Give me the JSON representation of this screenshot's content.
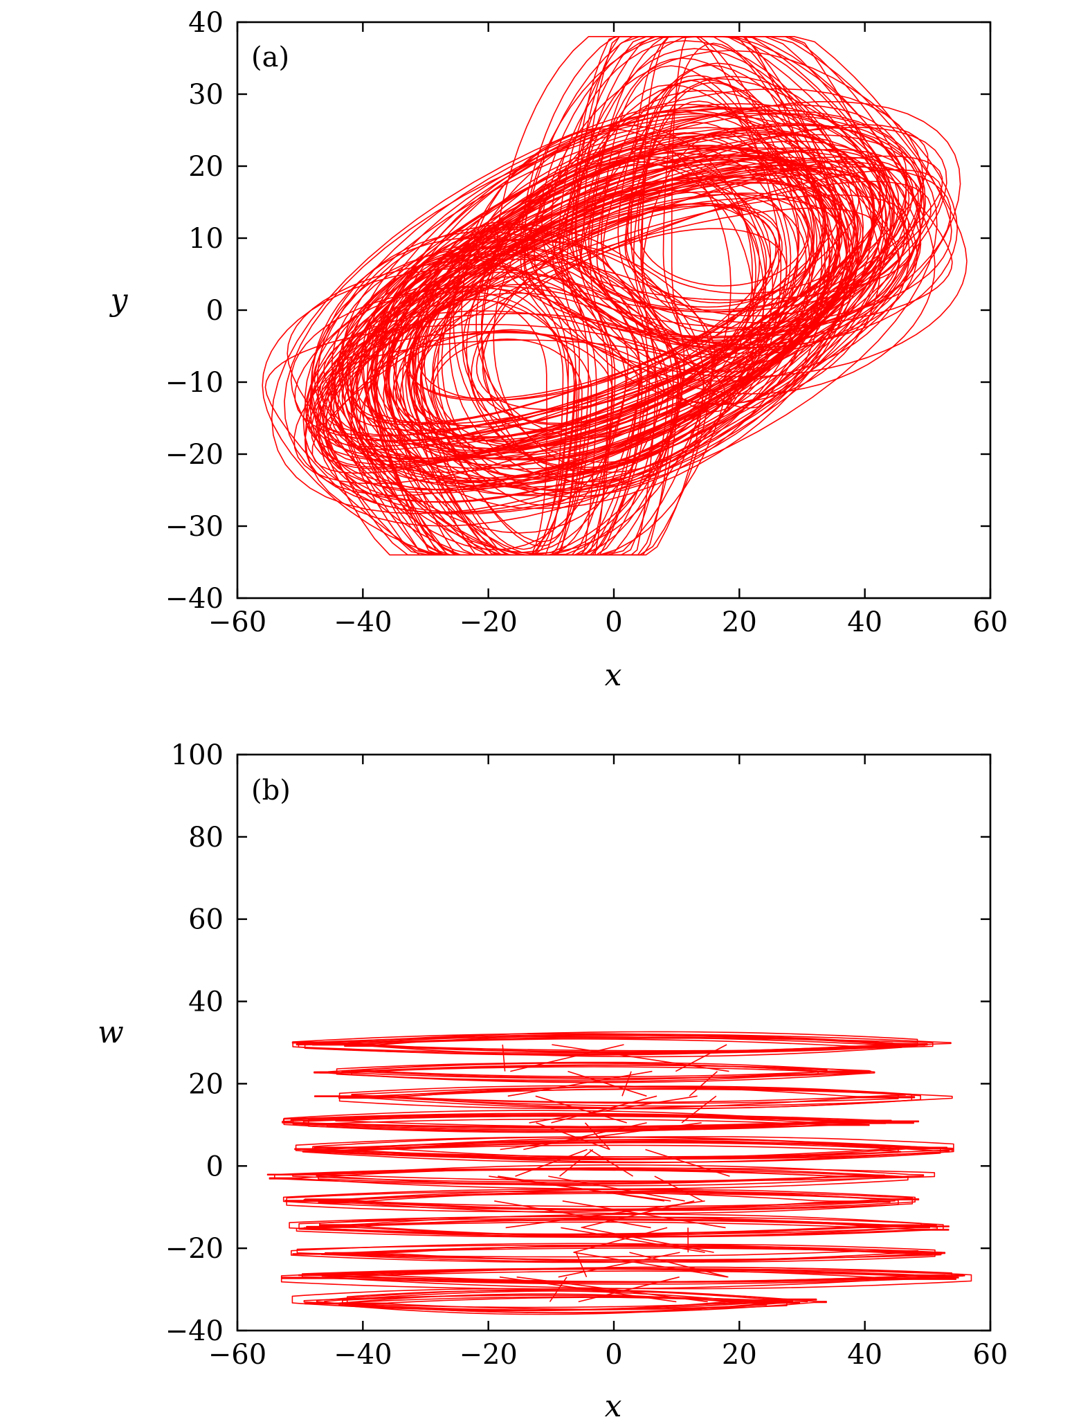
{
  "colors": {
    "trace": "#ff0000",
    "axes": "#000000",
    "background": "#ffffff"
  },
  "chart_data": [
    {
      "type": "line",
      "panel_label": "(a)",
      "xlabel": "x",
      "ylabel": "y",
      "xlim": [
        -60,
        60
      ],
      "ylim": [
        -40,
        40
      ],
      "xticks": [
        -60,
        -40,
        -20,
        0,
        20,
        40,
        60
      ],
      "yticks": [
        -40,
        -30,
        -20,
        -10,
        0,
        10,
        20,
        30,
        40
      ],
      "xtick_labels": [
        "−60",
        "−40",
        "−20",
        "0",
        "20",
        "40",
        "60"
      ],
      "ytick_labels": [
        "−40",
        "−30",
        "−20",
        "−10",
        "0",
        "10",
        "20",
        "30",
        "40"
      ],
      "grid": false,
      "description_of_series": "chaotic attractor phase portrait",
      "extent": {
        "x": [
          -57,
          57
        ],
        "y": [
          -34,
          38
        ]
      },
      "lobes": [
        {
          "center": [
            -20,
            -10
          ],
          "peak": [
            -20,
            -33
          ]
        },
        {
          "center": [
            20,
            10
          ],
          "peak": [
            21,
            38
          ]
        }
      ]
    },
    {
      "type": "line",
      "panel_label": "(b)",
      "xlabel": "x",
      "ylabel": "w",
      "xlim": [
        -60,
        60
      ],
      "ylim": [
        -40,
        100
      ],
      "xticks": [
        -60,
        -40,
        -20,
        0,
        20,
        40,
        60
      ],
      "yticks": [
        -40,
        -20,
        0,
        20,
        40,
        60,
        80,
        100
      ],
      "xtick_labels": [
        "−60",
        "−40",
        "−20",
        "0",
        "20",
        "40",
        "60"
      ],
      "ytick_labels": [
        "−40",
        "−20",
        "0",
        "20",
        "40",
        "60",
        "80",
        "100"
      ],
      "grid": false,
      "extent": {
        "x": [
          -57,
          57
        ],
        "y": [
          -35,
          32
        ]
      },
      "bands": [
        {
          "w": 29.5,
          "x": [
            -52,
            54
          ]
        },
        {
          "w": 23,
          "x": [
            -51,
            42
          ]
        },
        {
          "w": 17,
          "x": [
            -48,
            54
          ]
        },
        {
          "w": 10.5,
          "x": [
            -53,
            49
          ]
        },
        {
          "w": 4,
          "x": [
            -55,
            55
          ]
        },
        {
          "w": -2.5,
          "x": [
            -56,
            53
          ]
        },
        {
          "w": -8.5,
          "x": [
            -57,
            51
          ]
        },
        {
          "w": -15,
          "x": [
            -55,
            56
          ]
        },
        {
          "w": -21,
          "x": [
            -54,
            55
          ]
        },
        {
          "w": -27,
          "x": [
            -54,
            57
          ]
        },
        {
          "w": -33,
          "x": [
            -52,
            34
          ]
        }
      ]
    }
  ]
}
